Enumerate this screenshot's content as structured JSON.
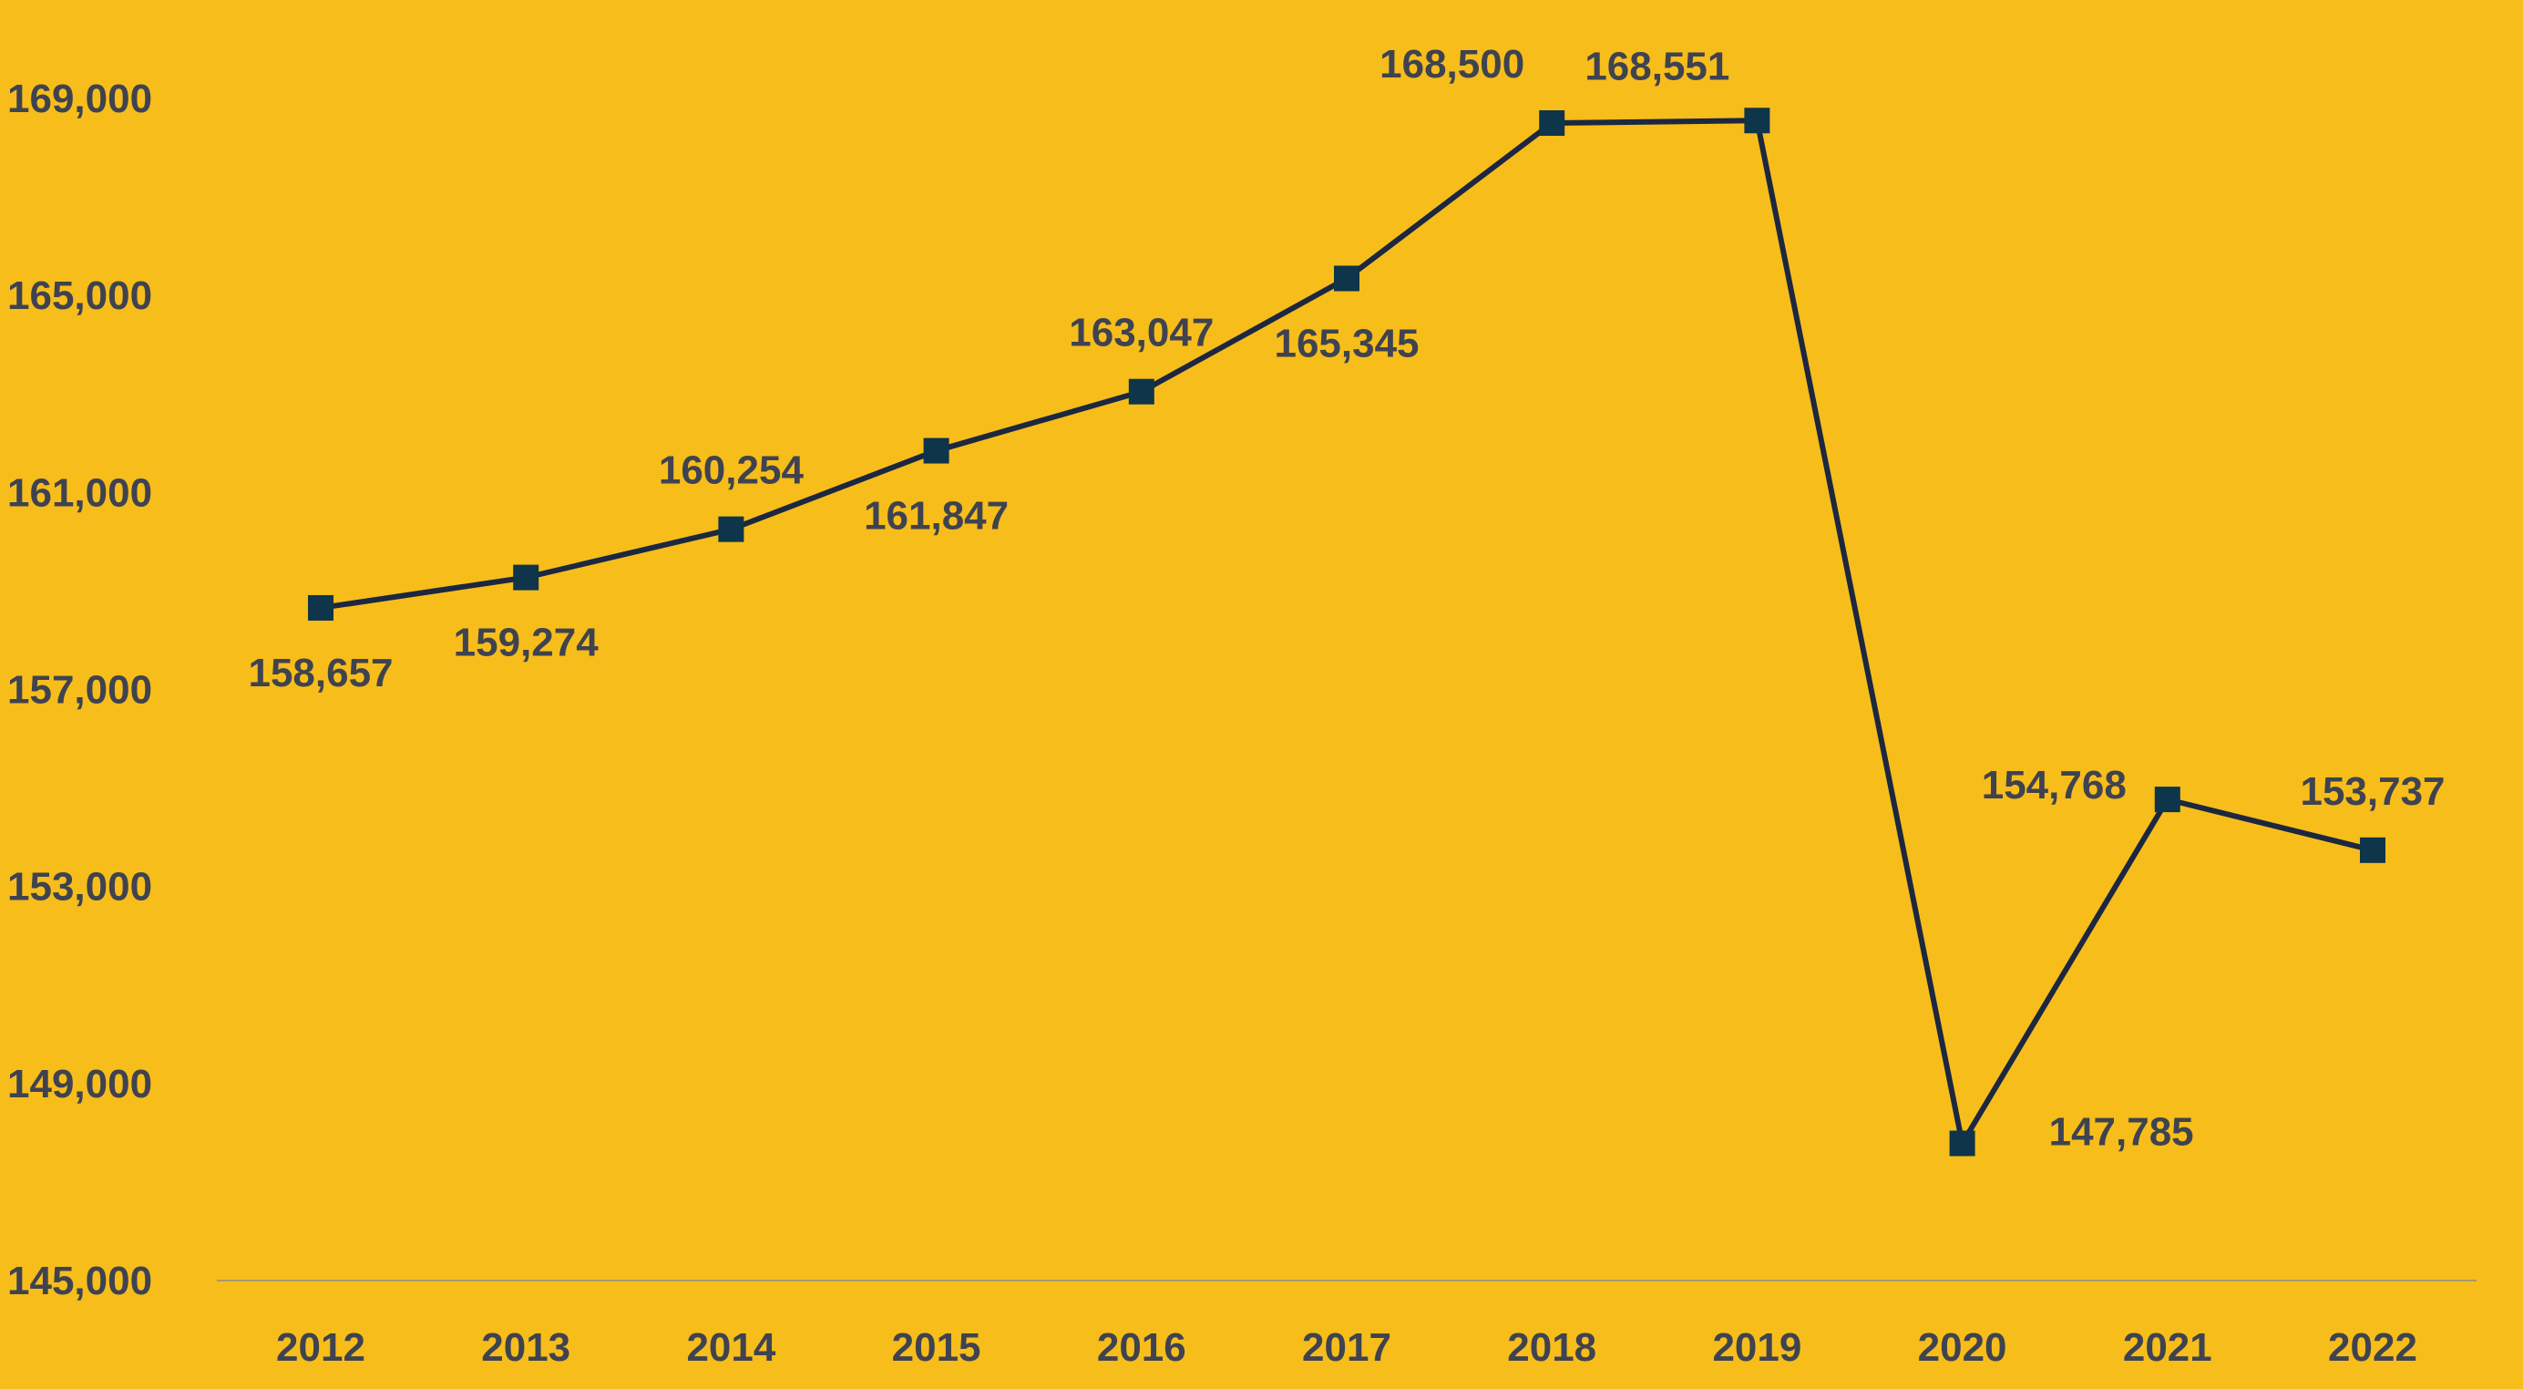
{
  "chart_data": {
    "type": "line",
    "title": "",
    "xlabel": "",
    "ylabel": "",
    "categories": [
      "2012",
      "2013",
      "2014",
      "2015",
      "2016",
      "2017",
      "2018",
      "2019",
      "2020",
      "2021",
      "2022"
    ],
    "series": [
      {
        "values": [
          158657,
          159274,
          160254,
          161847,
          163047,
          165345,
          168500,
          168551,
          147785,
          154768,
          153737
        ],
        "data_labels": [
          "158,657",
          "159,274",
          "160,254",
          "161,847",
          "163,047",
          "165,345",
          "168,500",
          "168,551",
          "147,785",
          "154,768",
          "153,737"
        ],
        "label_positions": [
          "below",
          "below",
          "above",
          "below",
          "above",
          "below",
          "above-left",
          "above-right",
          "right",
          "left",
          "above"
        ]
      }
    ],
    "ylim": [
      145000,
      169000
    ],
    "yticks": [
      145000,
      149000,
      153000,
      157000,
      161000,
      165000,
      169000
    ],
    "ytick_labels": [
      "145,000",
      "149,000",
      "153,000",
      "157,000",
      "161,000",
      "165,000",
      "169,000"
    ],
    "grid": false,
    "legend": "none",
    "marker": "square"
  },
  "colors": {
    "background": "#F7BD1B",
    "line": "#1C2740",
    "marker": "#0E3549",
    "text": "#3F4350",
    "axis": "#A89A6E"
  }
}
